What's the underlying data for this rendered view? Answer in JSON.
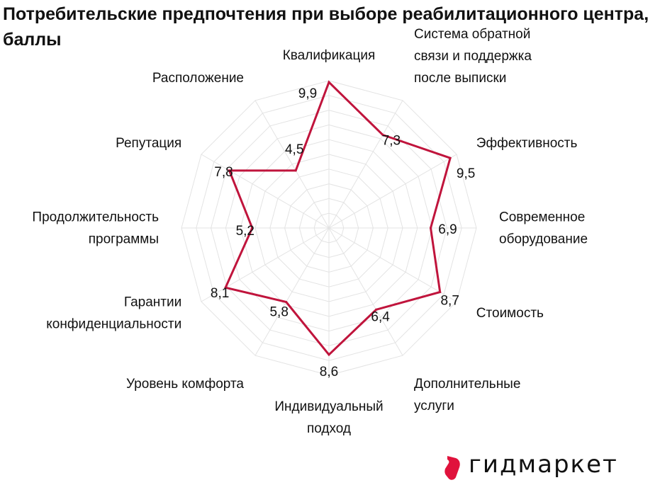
{
  "chart_data": {
    "type": "radar",
    "title": "Потребительские предпочтения при выборе реабилитационного центра, баллы",
    "categories": [
      "Квалификация",
      "Система обратной связи и поддержка после выписки",
      "Эффективность",
      "Современное оборудование",
      "Стоимость",
      "Дополнительные услуги",
      "Индивидуальный подход",
      "Уровень комфорта",
      "Гарантии конфиденциальности",
      "Продолжительность программы",
      "Репутация",
      "Расположение"
    ],
    "category_lines": [
      [
        "Квалификация"
      ],
      [
        "Система обратной",
        "связи и поддержка",
        "после выписки"
      ],
      [
        "Эффективность"
      ],
      [
        "Современное",
        "оборудование"
      ],
      [
        "Стоимость"
      ],
      [
        "Дополнительные",
        "услуги"
      ],
      [
        "Индивидуальный",
        "подход"
      ],
      [
        "Уровень комфорта"
      ],
      [
        "Гарантии",
        "конфиденциальности"
      ],
      [
        "Продолжительность",
        "программы"
      ],
      [
        "Репутация"
      ],
      [
        "Расположение"
      ]
    ],
    "series": [
      {
        "values": [
          9.9,
          7.3,
          9.5,
          6.9,
          8.7,
          6.4,
          8.6,
          5.8,
          8.1,
          5.2,
          7.8,
          4.5
        ],
        "value_labels": [
          "9,9",
          "7,3",
          "9,5",
          "6,9",
          "8,7",
          "6,4",
          "8,6",
          "5,8",
          "8,1",
          "5,2",
          "7,8",
          "4,5"
        ],
        "color": "#c0143c"
      }
    ],
    "rlim": [
      0,
      10
    ],
    "grid": true,
    "legend": "none"
  },
  "logo": {
    "text": "гидмаркет",
    "mark_color": "#e0123c"
  }
}
